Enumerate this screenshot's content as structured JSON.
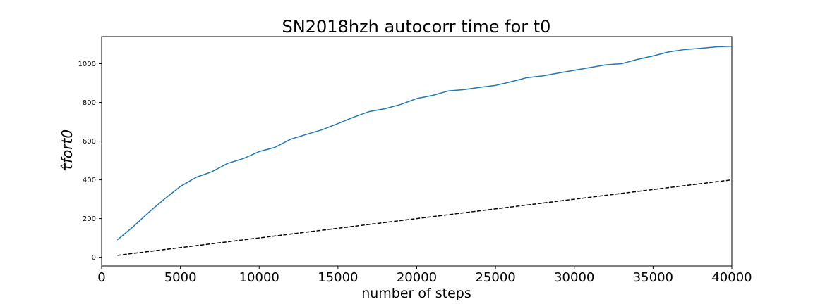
{
  "chart_data": {
    "type": "line",
    "title": "SN2018hzh  autocorr time for t0",
    "xlabel": "number of steps",
    "ylabel": "τ̂fort0",
    "xlim": [
      0,
      40000
    ],
    "ylim": [
      -45,
      1140
    ],
    "xticks": [
      "0",
      "5000",
      "10000",
      "15000",
      "20000",
      "25000",
      "30000",
      "35000",
      "40000"
    ],
    "yticks": [
      "0",
      "200",
      "400",
      "600",
      "800",
      "1000"
    ],
    "grid": false,
    "series": [
      {
        "style": "solid",
        "color": "#1f77b4",
        "x": [
          1000,
          2000,
          3000,
          4000,
          5000,
          6000,
          7000,
          8000,
          9000,
          10000,
          11000,
          12000,
          13000,
          14000,
          15000,
          16000,
          17000,
          18000,
          19000,
          20000,
          21000,
          22000,
          23000,
          24000,
          25000,
          26000,
          27000,
          28000,
          29000,
          30000,
          31000,
          32000,
          33000,
          34000,
          35000,
          36000,
          37000,
          38000,
          39000,
          40000
        ],
        "y": [
          90,
          158,
          233,
          302,
          366,
          413,
          442,
          485,
          510,
          546,
          568,
          610,
          635,
          659,
          691,
          724,
          753,
          768,
          790,
          820,
          836,
          859,
          866,
          878,
          888,
          907,
          928,
          937,
          952,
          966,
          980,
          994,
          1000,
          1022,
          1040,
          1061,
          1073,
          1079,
          1087,
          1090
        ]
      },
      {
        "style": "dashed",
        "color": "#000000",
        "x": [
          1000,
          40000
        ],
        "y": [
          10,
          400
        ]
      }
    ]
  }
}
